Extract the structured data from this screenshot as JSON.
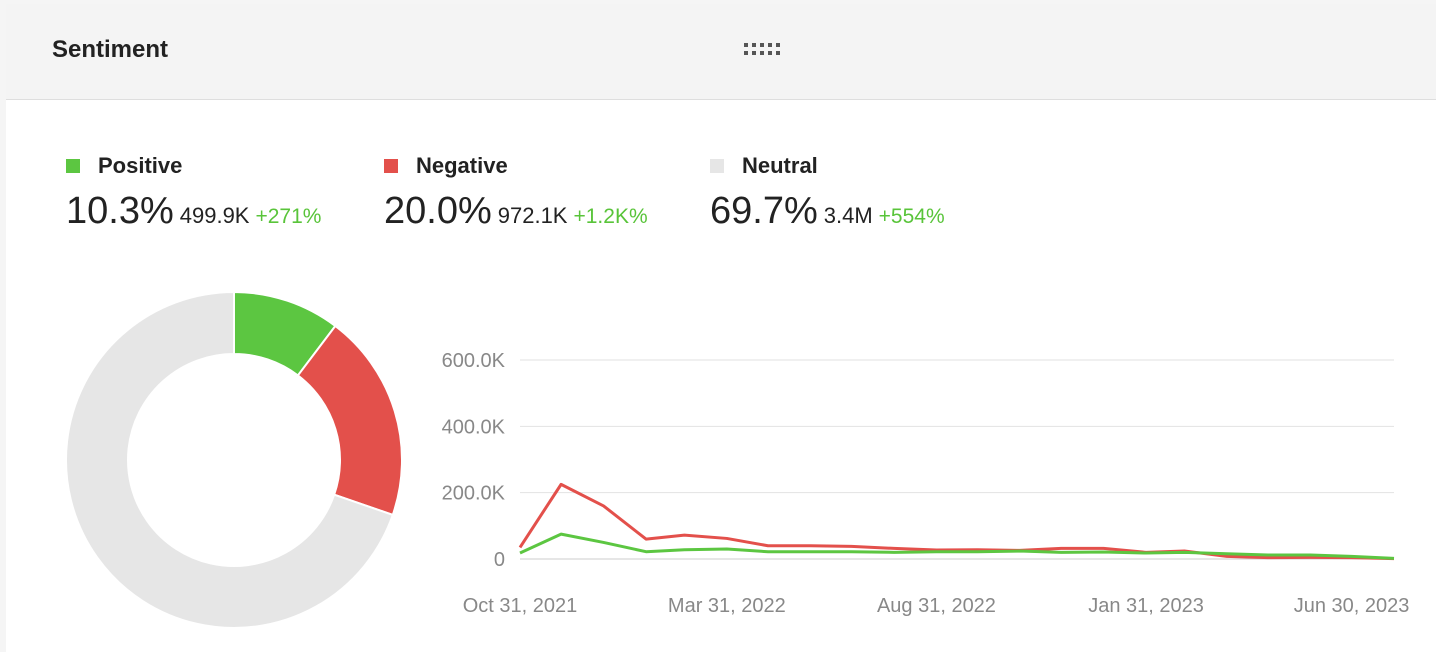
{
  "header": {
    "title": "Sentiment",
    "drag_handle_icon": "grip-dots-icon"
  },
  "stats": [
    {
      "key": "positive",
      "label": "Positive",
      "percent": "10.3%",
      "count": "499.9K",
      "change": "+271%",
      "color": "#5cc641"
    },
    {
      "key": "negative",
      "label": "Negative",
      "percent": "20.0%",
      "count": "972.1K",
      "change": "+1.2K%",
      "color": "#e3504b"
    },
    {
      "key": "neutral",
      "label": "Neutral",
      "percent": "69.7%",
      "count": "3.4M",
      "change": "+554%",
      "color": "#e6e6e6"
    }
  ],
  "chart_data": [
    {
      "type": "pie",
      "donut": true,
      "categories": [
        "Positive",
        "Negative",
        "Neutral"
      ],
      "values": [
        10.3,
        20.0,
        69.7
      ],
      "colors": [
        "#5cc641",
        "#e3504b",
        "#e6e6e6"
      ]
    },
    {
      "type": "line",
      "x": [
        "2021-10-31",
        "2021-11-30",
        "2021-12-31",
        "2022-01-31",
        "2022-02-28",
        "2022-03-31",
        "2022-04-30",
        "2022-05-31",
        "2022-06-30",
        "2022-07-31",
        "2022-08-31",
        "2022-09-30",
        "2022-10-31",
        "2022-11-30",
        "2022-12-31",
        "2023-01-31",
        "2023-02-28",
        "2023-03-31",
        "2023-04-30",
        "2023-05-31",
        "2023-06-30",
        "2023-07-31"
      ],
      "x_tick_labels": [
        "Oct 31, 2021",
        "Mar 31, 2022",
        "Aug 31, 2022",
        "Jan 31, 2023",
        "Jun 30, 2023"
      ],
      "y_tick_labels": [
        "0",
        "200.0K",
        "400.0K",
        "600.0K"
      ],
      "ylim": [
        0,
        600000
      ],
      "grid": true,
      "series": [
        {
          "name": "Negative",
          "color": "#e3504b",
          "values": [
            35000,
            225000,
            160000,
            60000,
            72000,
            62000,
            40000,
            40000,
            38000,
            32000,
            27000,
            28000,
            26000,
            32000,
            32000,
            20000,
            24000,
            8000,
            4000,
            5000,
            4000,
            1000
          ]
        },
        {
          "name": "Positive",
          "color": "#5cc641",
          "values": [
            18000,
            75000,
            50000,
            22000,
            28000,
            30000,
            22000,
            22000,
            22000,
            20000,
            22000,
            22000,
            24000,
            20000,
            21000,
            18000,
            20000,
            16000,
            12000,
            12000,
            8000,
            2000
          ]
        }
      ]
    }
  ]
}
